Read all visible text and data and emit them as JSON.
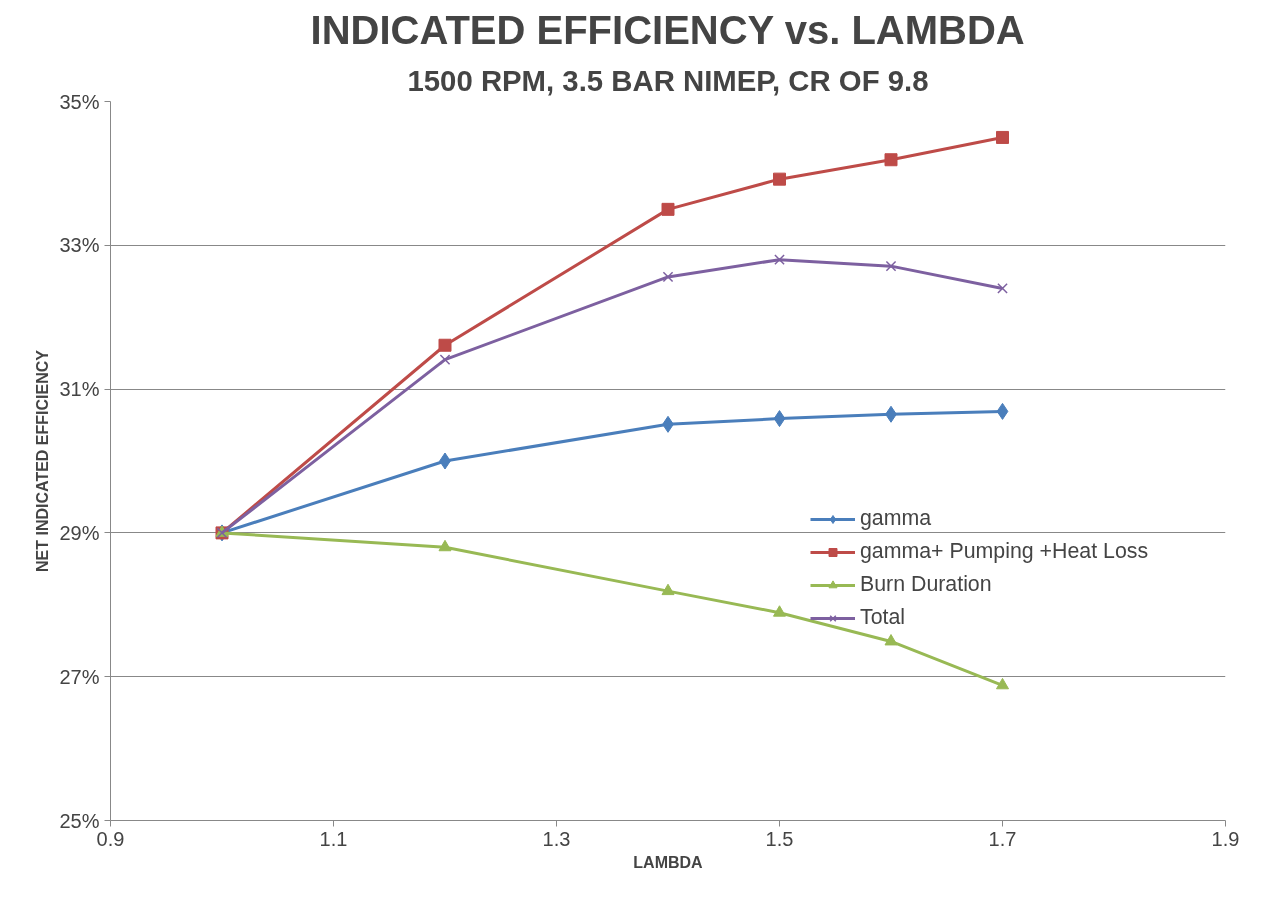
{
  "chart_data": {
    "type": "line",
    "title": "INDICATED EFFICIENCY vs. LAMBDA",
    "subtitle": "1500 RPM, 3.5 BAR NIMEP, CR OF 9.8",
    "xlabel": "LAMBDA",
    "ylabel": "NET INDICATED EFFICIENCY",
    "x": [
      1.0,
      1.2,
      1.4,
      1.5,
      1.6,
      1.7
    ],
    "series": [
      {
        "name": "gamma",
        "color": "#4a7ebb",
        "marker": "diamond",
        "values": [
          29.0,
          30.0,
          30.51,
          30.59,
          30.65,
          30.69
        ]
      },
      {
        "name": "gamma+ Pumping +Heat Loss",
        "color": "#be4b48",
        "marker": "square",
        "values": [
          29.0,
          31.61,
          33.5,
          33.92,
          34.19,
          34.5
        ]
      },
      {
        "name": "Burn Duration",
        "color": "#98b954",
        "marker": "triangle",
        "values": [
          29.0,
          28.8,
          28.19,
          27.89,
          27.49,
          26.88
        ]
      },
      {
        "name": "Total",
        "color": "#7d60a0",
        "marker": "cross",
        "values": [
          29.0,
          31.41,
          32.56,
          32.8,
          32.71,
          32.4
        ]
      }
    ],
    "xlim": [
      0.9,
      1.9
    ],
    "xticks": [
      0.9,
      1.1,
      1.3,
      1.5,
      1.7,
      1.9
    ],
    "ylim": [
      25,
      35
    ],
    "yticks": [
      {
        "value": 25,
        "label": "25%"
      },
      {
        "value": 27,
        "label": "27%"
      },
      {
        "value": 29,
        "label": "29%"
      },
      {
        "value": 31,
        "label": "31%"
      },
      {
        "value": 33,
        "label": "33%"
      },
      {
        "value": 35,
        "label": "35%"
      }
    ],
    "grid": "y",
    "legend": "right",
    "line_style": "solid"
  }
}
